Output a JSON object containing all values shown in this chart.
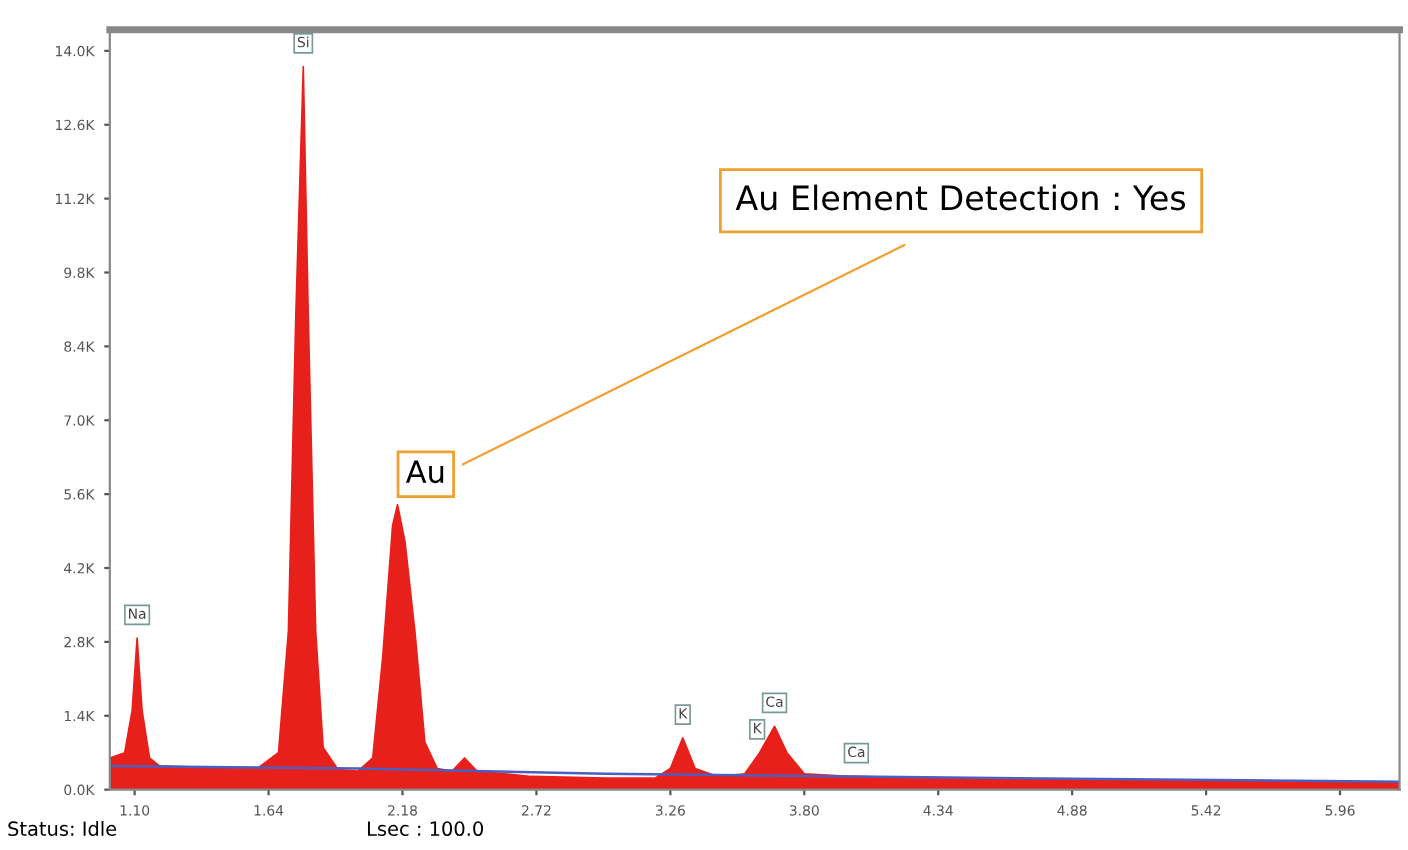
{
  "chart_data": {
    "type": "area",
    "xlim": [
      1.0,
      6.2
    ],
    "ylim": [
      0,
      14400
    ],
    "xticks": [
      {
        "value": 1.1,
        "label": "1.10"
      },
      1.64,
      2.18,
      2.72,
      3.26,
      {
        "value": 3.8,
        "label": "3.80"
      },
      4.34,
      4.88,
      5.42,
      5.96
    ],
    "yticks": [
      {
        "value": 0,
        "label": "0.0K"
      },
      {
        "value": 1400,
        "label": "1.4K"
      },
      {
        "value": 2800,
        "label": "2.8K"
      },
      {
        "value": 4200,
        "label": "4.2K"
      },
      {
        "value": 5600,
        "label": "5.6K"
      },
      {
        "value": 7000,
        "label": "7.0K"
      },
      {
        "value": 8400,
        "label": "8.4K"
      },
      {
        "value": 9800,
        "label": "9.8K"
      },
      {
        "value": 11200,
        "label": "11.2K"
      },
      {
        "value": 12600,
        "label": "12.6K"
      },
      {
        "value": 14000,
        "label": "14.0K"
      }
    ],
    "series": [
      {
        "color": "#e8201c",
        "x": [
          1.0,
          1.06,
          1.09,
          1.11,
          1.13,
          1.16,
          1.2,
          1.4,
          1.6,
          1.68,
          1.72,
          1.75,
          1.78,
          1.8,
          1.83,
          1.86,
          1.92,
          2.0,
          2.06,
          2.1,
          2.14,
          2.16,
          2.19,
          2.23,
          2.27,
          2.32,
          2.38,
          2.43,
          2.48,
          2.7,
          3.0,
          3.2,
          3.26,
          3.31,
          3.36,
          3.45,
          3.56,
          3.62,
          3.68,
          3.73,
          3.8,
          4.0,
          4.3,
          4.8,
          5.4,
          6.2
        ],
        "values": [
          600,
          700,
          1500,
          2870,
          1500,
          600,
          450,
          420,
          420,
          700,
          3000,
          9000,
          13700,
          9000,
          3000,
          800,
          380,
          350,
          600,
          2500,
          5000,
          5400,
          4700,
          3000,
          900,
          400,
          350,
          600,
          350,
          250,
          220,
          220,
          400,
          980,
          400,
          250,
          300,
          700,
          1200,
          700,
          300,
          250,
          220,
          200,
          180,
          130
        ]
      },
      {
        "type": "line",
        "color": "#4a5fc1",
        "x": [
          1.0,
          2.0,
          3.0,
          4.0,
          5.0,
          6.2
        ],
        "values": [
          450,
          400,
          300,
          250,
          200,
          150
        ]
      }
    ],
    "annotations": [
      {
        "text": "Na",
        "x": 1.11,
        "y": 2870
      },
      {
        "text": "Si",
        "x": 1.78,
        "y": 13700
      },
      {
        "text": "K",
        "x": 3.31,
        "y": 980
      },
      {
        "text": "K",
        "x": 3.61,
        "y": 700
      },
      {
        "text": "Ca",
        "x": 3.68,
        "y": 1200
      },
      {
        "text": "Ca",
        "x": 4.01,
        "y": 250
      },
      {
        "text": "Au",
        "x": 2.16,
        "y": 5400
      },
      "Au Element Detection : Yes",
      "Status: Idle",
      "Lsec : 100.0"
    ]
  }
}
